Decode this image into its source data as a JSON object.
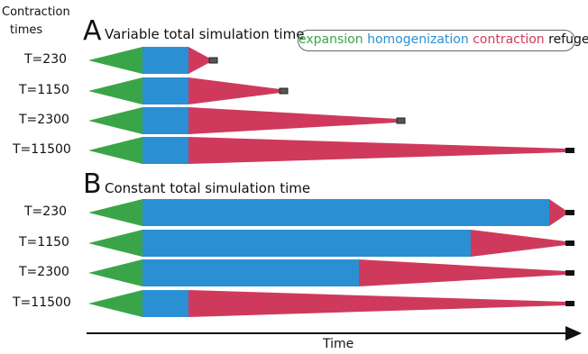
{
  "header": {
    "line1": "Contraction",
    "line2": "times"
  },
  "panel_a": {
    "letter": "A",
    "title": "Variable total simulation time",
    "rows": [
      {
        "label": "T=230",
        "contraction_time": 230
      },
      {
        "label": "T=1150",
        "contraction_time": 1150
      },
      {
        "label": "T=2300",
        "contraction_time": 2300
      },
      {
        "label": "T=11500",
        "contraction_time": 11500
      }
    ]
  },
  "panel_b": {
    "letter": "B",
    "title": "Constant total simulation time",
    "rows": [
      {
        "label": "T=230",
        "contraction_time": 230
      },
      {
        "label": "T=1150",
        "contraction_time": 1150
      },
      {
        "label": "T=2300",
        "contraction_time": 2300
      },
      {
        "label": "T=11500",
        "contraction_time": 11500
      }
    ]
  },
  "legend": {
    "expansion": {
      "label": "expansion",
      "color": "#3aa548"
    },
    "homogenization": {
      "label": "homogenization",
      "color": "#2b8fd3"
    },
    "contraction": {
      "label": "contraction",
      "color": "#cf3a5c"
    },
    "refuge": {
      "label": "refuge",
      "color": "#111111"
    }
  },
  "x_axis_label": "Time"
}
